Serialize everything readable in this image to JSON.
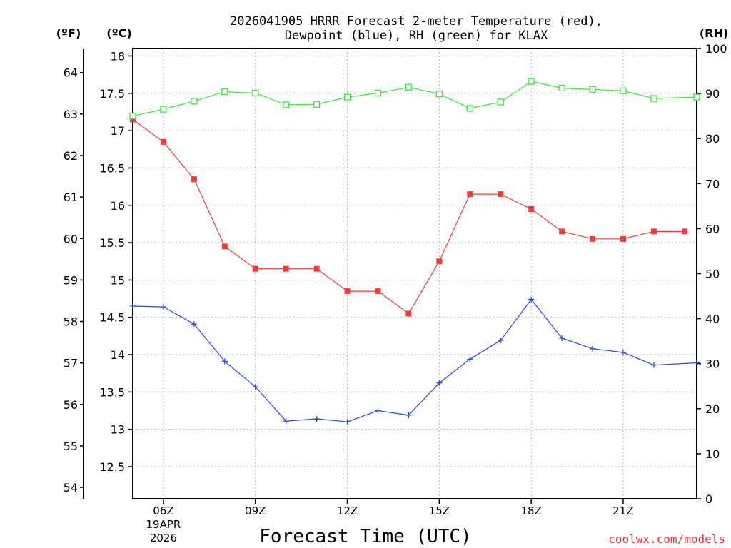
{
  "chart_data": {
    "type": "line",
    "title_line1": "2026041905 HRRR Forecast 2-meter Temperature (red),",
    "title_line2": "Dewpoint (blue), RH (green) for KLAX",
    "xlabel": "Forecast Time (UTC)",
    "credit": "coolwx.com/models",
    "left_unit_f": "(ºF)",
    "left_unit_c": "(ºC)",
    "right_unit": "(RH)",
    "x_range": [
      5,
      23.4
    ],
    "x_ticks": [
      {
        "hour": 6,
        "label": "06Z",
        "sub1": "19APR",
        "sub2": "2026"
      },
      {
        "hour": 9,
        "label": "09Z"
      },
      {
        "hour": 12,
        "label": "12Z"
      },
      {
        "hour": 15,
        "label": "15Z"
      },
      {
        "hour": 18,
        "label": "18Z"
      },
      {
        "hour": 21,
        "label": "21Z"
      }
    ],
    "c_range": [
      12.07,
      18.1
    ],
    "c_ticks": [
      "12.5",
      "13",
      "13.5",
      "14",
      "14.5",
      "15",
      "15.5",
      "16",
      "16.5",
      "17",
      "17.5",
      "18"
    ],
    "f_ticks": [
      "54",
      "55",
      "56",
      "57",
      "58",
      "59",
      "60",
      "61",
      "62",
      "63",
      "64"
    ],
    "rh_range": [
      0,
      100
    ],
    "rh_ticks": [
      "0",
      "10",
      "20",
      "30",
      "40",
      "50",
      "60",
      "70",
      "80",
      "90",
      "100"
    ],
    "series": [
      {
        "name": "Temperature",
        "unit": "C",
        "color": "#f03c3c",
        "marker": "filled-square",
        "x": [
          5,
          6,
          7,
          8,
          9,
          10,
          11,
          12,
          13,
          14,
          15,
          16,
          17,
          18,
          19,
          20,
          21,
          22,
          23
        ],
        "values": [
          17.15,
          16.85,
          16.35,
          15.45,
          15.15,
          15.15,
          15.15,
          14.85,
          14.85,
          14.55,
          15.25,
          16.15,
          16.15,
          15.95,
          15.65,
          15.55,
          15.55,
          15.65,
          15.65
        ]
      },
      {
        "name": "Dewpoint",
        "unit": "C",
        "color": "#2846e6",
        "marker": "plus",
        "x": [
          5,
          6,
          7,
          8,
          9,
          10,
          11,
          12,
          13,
          14,
          15,
          16,
          17,
          18,
          19,
          20,
          21,
          22,
          23.4
        ],
        "values": [
          14.65,
          14.64,
          14.41,
          13.91,
          13.57,
          13.11,
          13.14,
          13.1,
          13.25,
          13.19,
          13.62,
          13.94,
          14.19,
          14.74,
          14.22,
          14.08,
          14.03,
          13.86,
          13.89
        ]
      },
      {
        "name": "RH",
        "unit": "%",
        "color": "#3ce63c",
        "marker": "open-square",
        "x": [
          5,
          6,
          7,
          8,
          9,
          10,
          11,
          12,
          13,
          14,
          15,
          16,
          17,
          18,
          19,
          20,
          21,
          22,
          23.4
        ],
        "values": [
          85,
          86.5,
          88.3,
          90.4,
          90.1,
          87.5,
          87.6,
          89.2,
          90.1,
          91.4,
          89.9,
          86.7,
          88.1,
          92.7,
          91.2,
          90.9,
          90.6,
          88.9,
          89.2
        ]
      }
    ]
  }
}
